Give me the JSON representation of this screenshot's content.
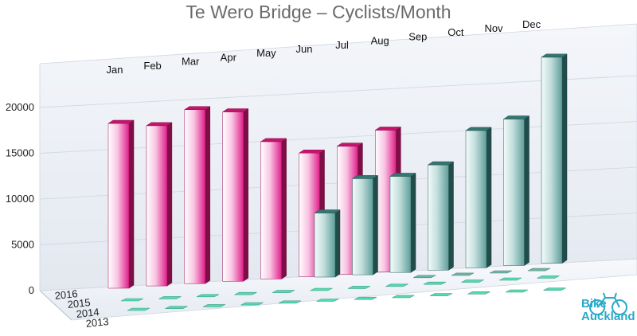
{
  "chart_data": {
    "type": "bar",
    "title": "Te Wero Bridge – Cyclists/Month",
    "categories": [
      "Jan",
      "Feb",
      "Mar",
      "Apr",
      "May",
      "Jun",
      "Jul",
      "Aug",
      "Sep",
      "Oct",
      "Nov",
      "Dec"
    ],
    "years": [
      "2016",
      "2015",
      "2014",
      "2013"
    ],
    "y_ticks": [
      "0",
      "5000",
      "10000",
      "15000",
      "20000"
    ],
    "ylim": [
      0,
      25000
    ],
    "grid": true,
    "legend": "none",
    "series": [
      {
        "name": "2016",
        "color": "#e6197f",
        "values": [
          18000,
          17500,
          19000,
          18500,
          15000,
          13500,
          14000,
          15500,
          null,
          null,
          null,
          null
        ]
      },
      {
        "name": "2015",
        "color": "#3e8a86",
        "values": [
          null,
          null,
          null,
          null,
          null,
          7000,
          10500,
          10500,
          11500,
          15000,
          16000,
          22500
        ]
      },
      {
        "name": "2014",
        "color": "#55d9b3",
        "values": [
          0,
          0,
          0,
          0,
          0,
          0,
          0,
          0,
          0,
          0,
          0,
          0
        ]
      },
      {
        "name": "2013",
        "color": "#55d9b3",
        "values": [
          0,
          0,
          0,
          0,
          0,
          0,
          0,
          0,
          0,
          0,
          0,
          0
        ]
      }
    ]
  },
  "logo": {
    "line1": "Bike",
    "line2": "Auckland",
    "color": "#29a9c7"
  }
}
